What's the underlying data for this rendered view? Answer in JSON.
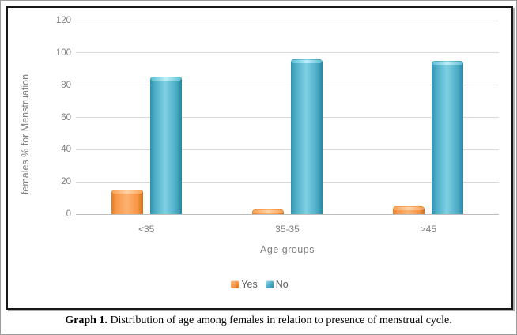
{
  "caption": {
    "prefix": "Graph 1.",
    "text": " Distribution of age among females in relation to presence of menstrual cycle."
  },
  "chart_data": {
    "type": "bar",
    "title": "",
    "categories": [
      "<35",
      "35-35",
      ">45"
    ],
    "series": [
      {
        "name": "Yes",
        "color": "#F79646",
        "values": [
          15,
          3,
          5
        ]
      },
      {
        "name": "No",
        "color": "#4BACC6",
        "values": [
          85,
          96,
          95
        ]
      }
    ],
    "xlabel": "Age groups",
    "ylabel": "females % for Menstruation",
    "ylim": [
      0,
      120
    ],
    "yticks": [
      0,
      20,
      40,
      60,
      80,
      100,
      120
    ],
    "grid": true,
    "legend_position": "bottom",
    "bar_style": "3d-bevel",
    "gridline_color": "#D9D9D9",
    "tick_text_color": "#7F7F7F"
  }
}
